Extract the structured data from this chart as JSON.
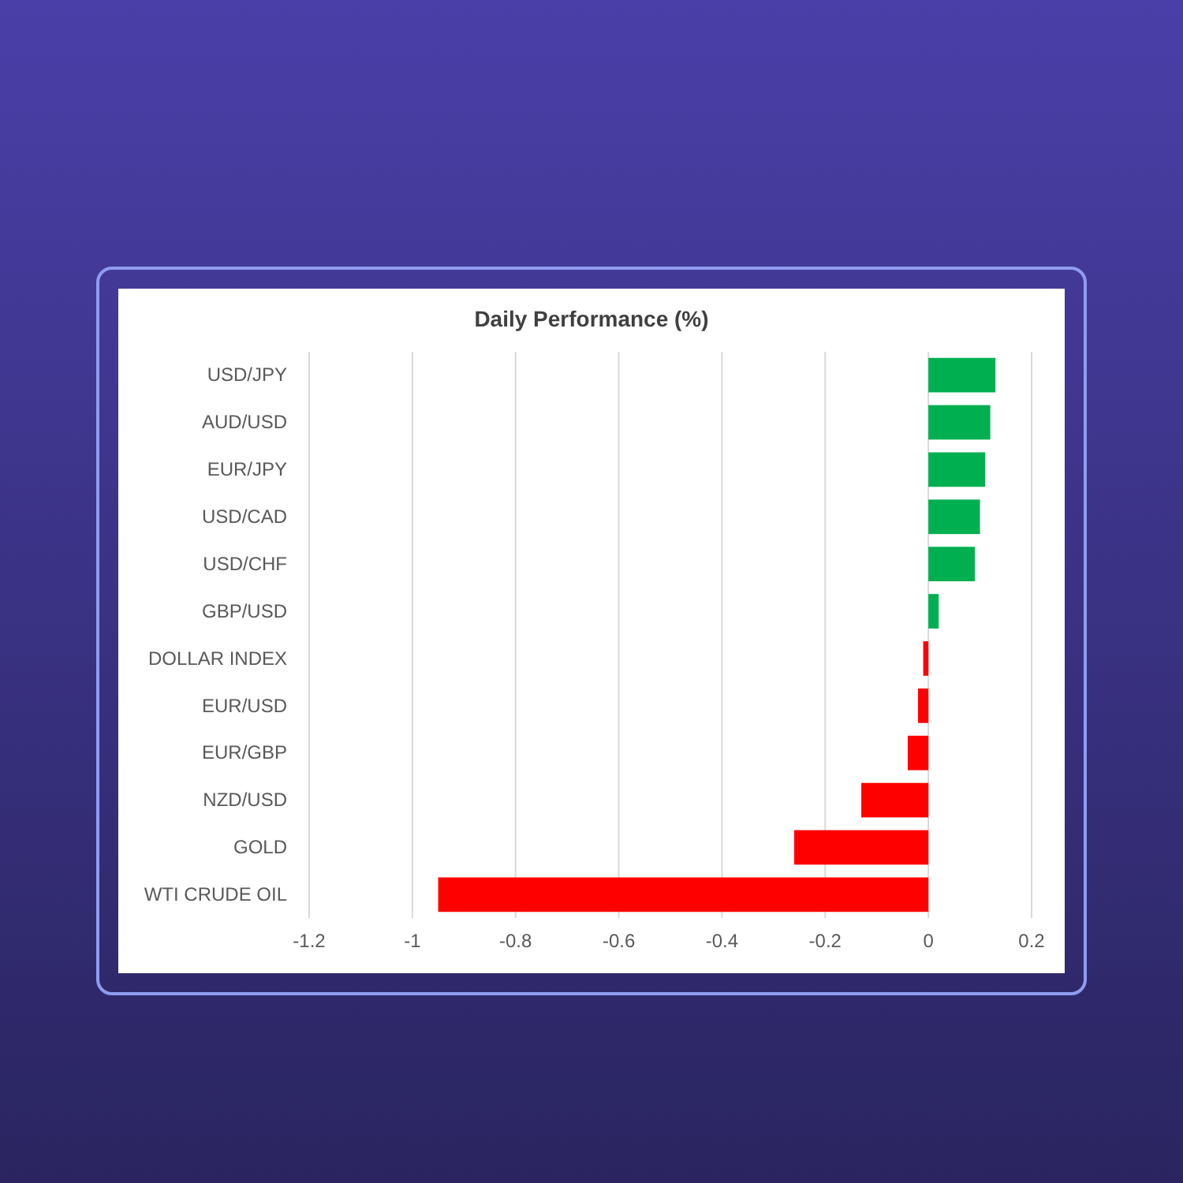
{
  "chart_data": {
    "type": "bar",
    "orientation": "horizontal",
    "title": "Daily Performance (%)",
    "categories": [
      "USD/JPY",
      "AUD/USD",
      "EUR/JPY",
      "USD/CAD",
      "USD/CHF",
      "GBP/USD",
      "DOLLAR INDEX",
      "EUR/USD",
      "EUR/GBP",
      "NZD/USD",
      "GOLD",
      "WTI CRUDE OIL"
    ],
    "values": [
      0.13,
      0.12,
      0.11,
      0.1,
      0.09,
      0.02,
      -0.01,
      -0.02,
      -0.04,
      -0.13,
      -0.26,
      -0.95
    ],
    "colors": [
      "#00b050",
      "#00b050",
      "#00b050",
      "#00b050",
      "#00b050",
      "#00b050",
      "#ff0000",
      "#ff0000",
      "#ff0000",
      "#ff0000",
      "#ff0000",
      "#ff0000"
    ],
    "xlim": [
      -1.2,
      0.2
    ],
    "xticks": [
      -1.2,
      -1,
      -0.8,
      -0.6,
      -0.4,
      -0.2,
      0,
      0.2
    ],
    "grid": "x"
  }
}
